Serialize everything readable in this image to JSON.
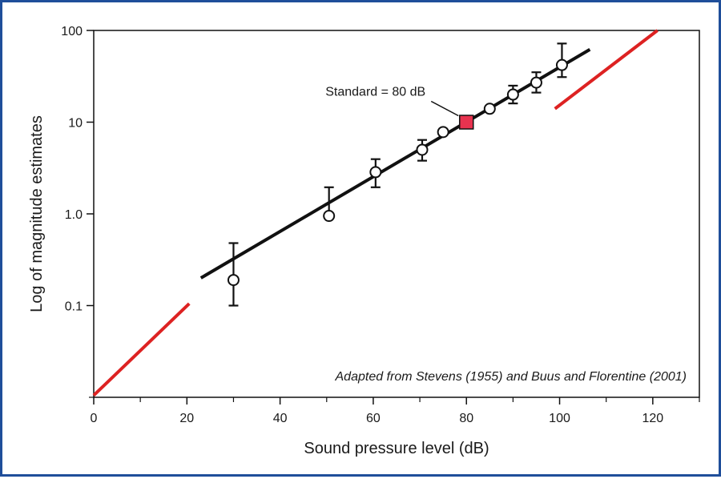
{
  "chart_data": {
    "type": "scatter",
    "title": "",
    "xlabel": "Sound pressure level (dB)",
    "ylabel": "Log of magnitude estimates",
    "xlim": [
      0,
      130
    ],
    "ylim": [
      0.01,
      100
    ],
    "y_scale": "log",
    "grid": false,
    "x_ticks": [
      0,
      20,
      40,
      60,
      80,
      100,
      120
    ],
    "x_minor_ticks": [
      10,
      30,
      50,
      70,
      90,
      110,
      130
    ],
    "y_ticks": [
      100,
      10,
      1.0,
      0.1
    ],
    "y_tick_labels": [
      "100",
      "10",
      "1.0",
      "0.1"
    ],
    "y_minor_ticks": [
      0.01
    ],
    "points": [
      {
        "x": 30,
        "y": 0.19,
        "err_low": 0.1,
        "err_high": 0.48
      },
      {
        "x": 50.5,
        "y": 0.95,
        "err_low": 0.95,
        "err_high": 1.95
      },
      {
        "x": 60.5,
        "y": 2.85,
        "err_low": 1.95,
        "err_high": 3.95
      },
      {
        "x": 70.5,
        "y": 5.0,
        "err_low": 3.8,
        "err_high": 6.4
      },
      {
        "x": 75,
        "y": 7.8
      },
      {
        "x": 85,
        "y": 14
      },
      {
        "x": 90,
        "y": 20,
        "err_low": 16,
        "err_high": 25
      },
      {
        "x": 95,
        "y": 27,
        "err_low": 21,
        "err_high": 35
      },
      {
        "x": 100.5,
        "y": 42,
        "err_low": 31,
        "err_high": 72
      }
    ],
    "standard_point": {
      "x": 80,
      "y": 10,
      "label": "Standard = 80 dB",
      "color": "#e8334f"
    },
    "fit_line": {
      "x": [
        23,
        106.5
      ],
      "y": [
        0.2,
        62
      ],
      "color": "#111111"
    },
    "red_segments": [
      {
        "x": [
          0,
          20.5
        ],
        "y": [
          0.0105,
          0.105
        ]
      },
      {
        "x": [
          99,
          121
        ],
        "y": [
          14,
          100
        ]
      }
    ],
    "red_color": "#dd2222",
    "annotation": "Adapted from Stevens (1955) and Buus and Florentine (2001)",
    "border_color": "#1f4e9a"
  }
}
